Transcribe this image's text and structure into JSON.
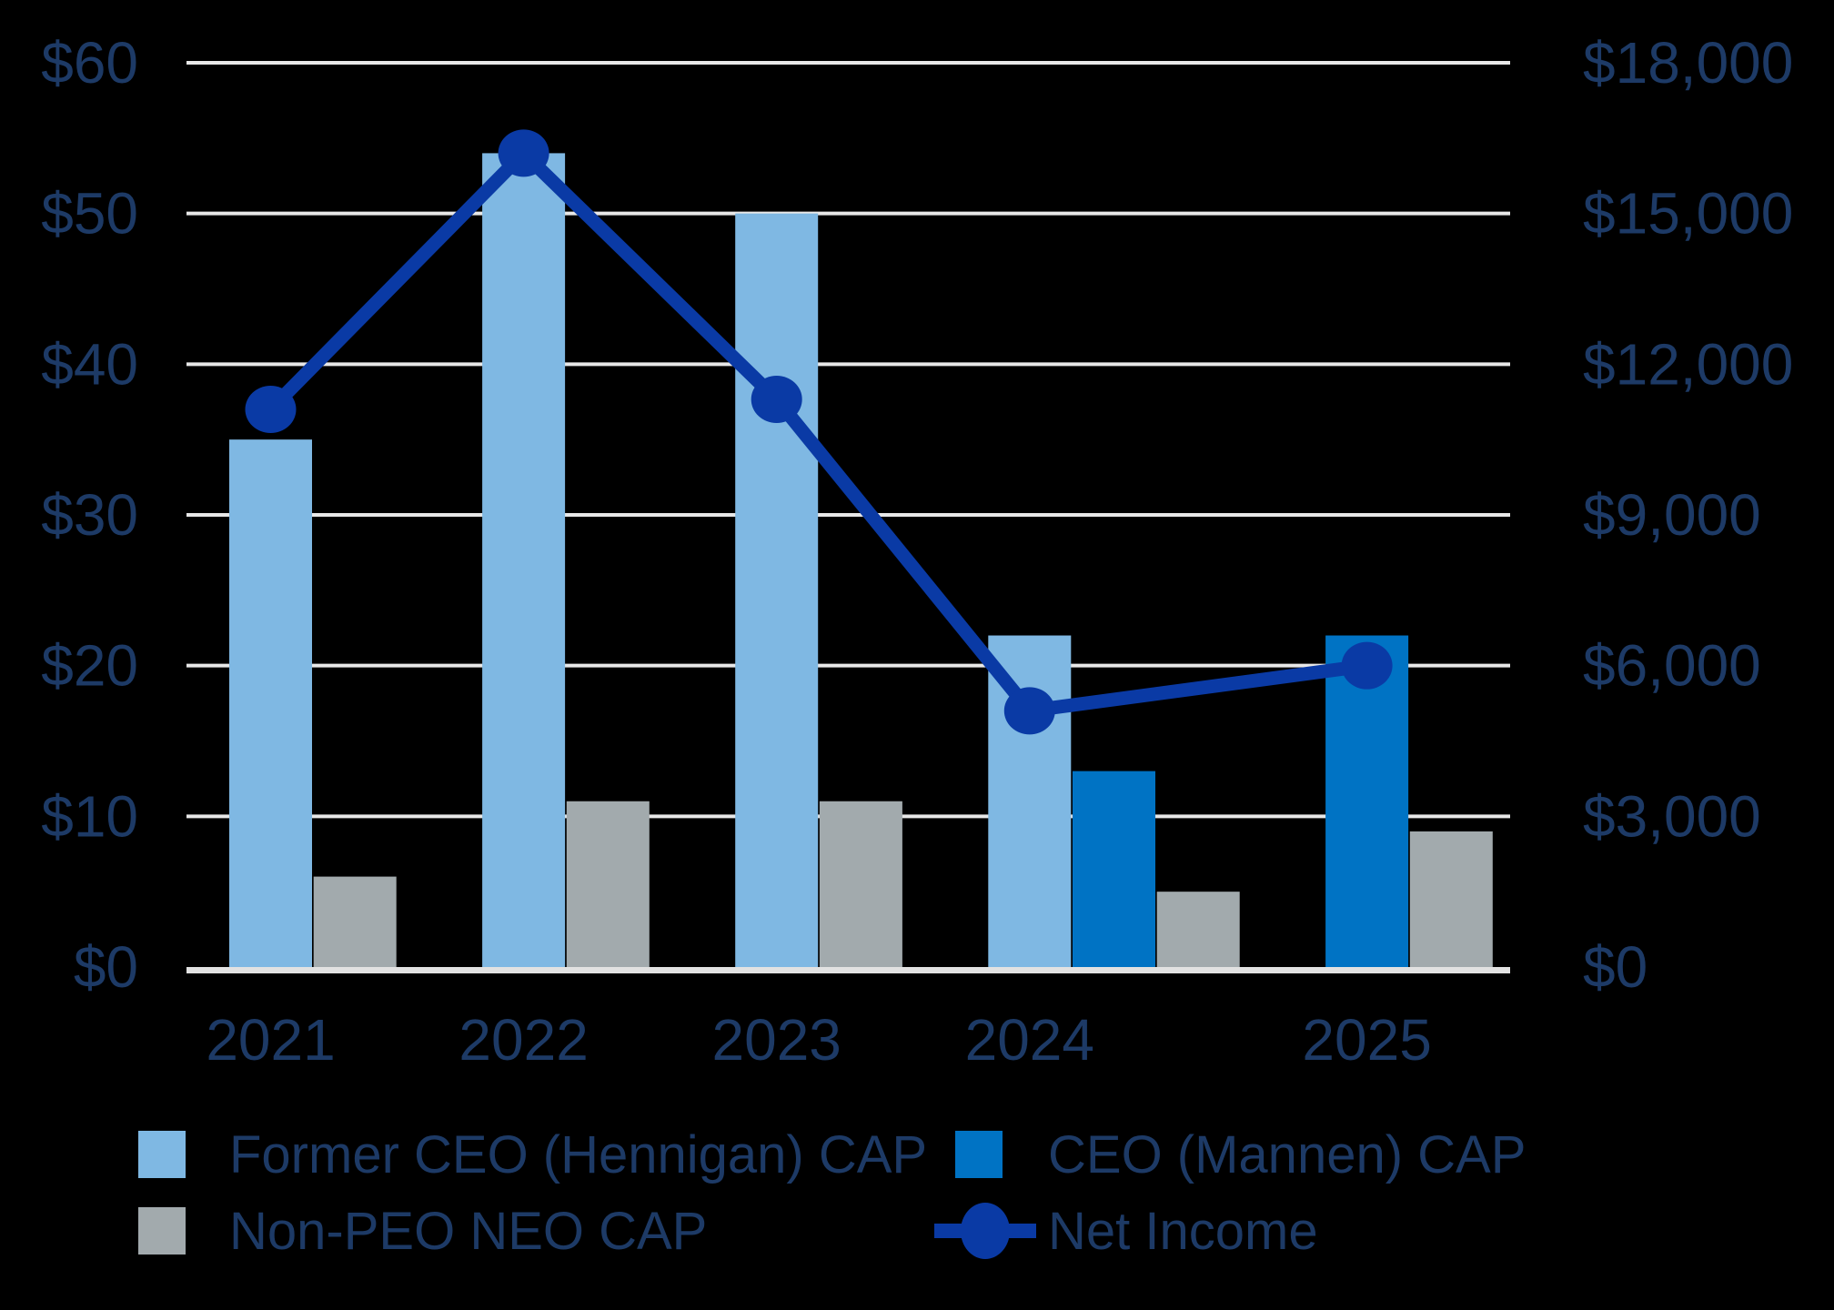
{
  "chart": {
    "background": "#000000",
    "text_color": "#1d3a66",
    "gridline_color": "#e8e8e8",
    "axis_line_color": "#e2e2e2"
  },
  "chart_data": {
    "type": "bar+line",
    "title": "",
    "categories": [
      "2021",
      "2022",
      "2023",
      "2024",
      "2025"
    ],
    "bar_series": [
      {
        "name": "Former CEO (Hennigan) CAP",
        "color": "#7fb8e3",
        "values": [
          35,
          54,
          50,
          22,
          null
        ]
      },
      {
        "name": "CEO (Mannen) CAP",
        "color": "#0073c4",
        "values": [
          null,
          null,
          null,
          13,
          22
        ]
      },
      {
        "name": "Non-PEO NEO CAP",
        "color": "#a2aaad",
        "values": [
          6,
          11,
          11,
          5,
          9
        ]
      }
    ],
    "line_series": {
      "name": "Net Income",
      "color": "#0a3aa5",
      "values": [
        11100,
        16200,
        11300,
        5100,
        6000
      ]
    },
    "left_axis": {
      "min": 0,
      "max": 60,
      "step": 10,
      "tick_labels": [
        "$0",
        "$10",
        "$20",
        "$30",
        "$40",
        "$50",
        "$60"
      ]
    },
    "right_axis": {
      "min": 0,
      "max": 18000,
      "step": 3000,
      "tick_labels": [
        "$0",
        "$3,000",
        "$6,000",
        "$9,000",
        "$12,000",
        "$15,000",
        "$18,000"
      ]
    },
    "grid": true,
    "legend_position": "bottom",
    "legend": [
      {
        "label": "Former CEO (Hennigan) CAP",
        "marker": "square",
        "color": "#7fb8e3"
      },
      {
        "label": "CEO (Mannen) CAP",
        "marker": "square",
        "color": "#0073c4"
      },
      {
        "label": "Non-PEO NEO CAP",
        "marker": "square",
        "color": "#a2aaad"
      },
      {
        "label": "Net Income",
        "marker": "line-dot",
        "color": "#0a3aa5"
      }
    ]
  }
}
